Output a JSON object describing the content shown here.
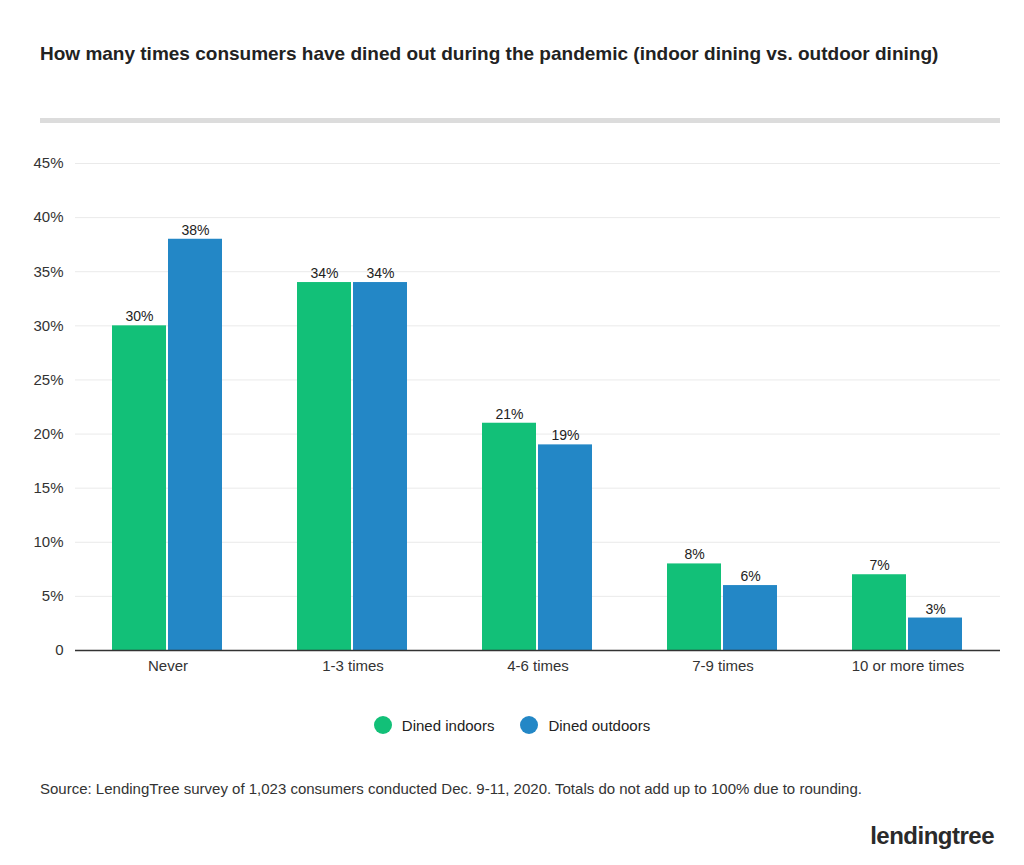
{
  "chart_data": {
    "type": "bar",
    "title": "How many times consumers have dined out during the pandemic (indoor dining vs. outdoor dining)",
    "categories": [
      "Never",
      "1-3 times",
      "4-6 times",
      "7-9 times",
      "10 or more times"
    ],
    "series": [
      {
        "name": "Dined indoors",
        "color": "#12c078",
        "values": [
          30,
          34,
          21,
          8,
          7
        ],
        "value_labels": [
          "30%",
          "34%",
          "21%",
          "8%",
          "7%"
        ]
      },
      {
        "name": "Dined outdoors",
        "color": "#2387c6",
        "values": [
          38,
          34,
          19,
          6,
          3
        ],
        "value_labels": [
          "38%",
          "34%",
          "19%",
          "6%",
          "3%"
        ]
      }
    ],
    "ylim": [
      0,
      45
    ],
    "yticks": [
      0,
      {
        "value": 5,
        "label": "5%"
      },
      {
        "value": 10,
        "label": "10%"
      },
      {
        "value": 15,
        "label": "15%"
      },
      {
        "value": 20,
        "label": "20%"
      },
      {
        "value": 25,
        "label": "25%"
      },
      {
        "value": 30,
        "label": "30%"
      },
      {
        "value": 35,
        "label": "35%"
      },
      {
        "value": 40,
        "label": "40%"
      },
      {
        "value": 45,
        "label": "45%"
      }
    ],
    "grid": true,
    "data_labels": true,
    "legend": "bottom",
    "source": "Source: LendingTree survey of 1,023 consumers conducted Dec. 9-11, 2020. Totals do not add up to 100% due to rounding.",
    "logo": "lendingtree"
  }
}
